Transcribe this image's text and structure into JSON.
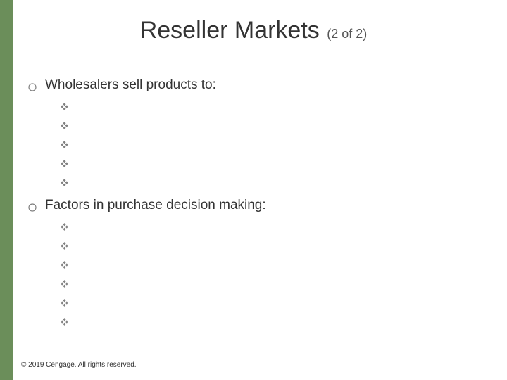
{
  "accent_bar_color": "#6b8e5a",
  "title": {
    "main": "Reseller Markets",
    "sub": "(2 of 2)",
    "main_fontsize": 34,
    "sub_fontsize": 18,
    "main_color": "#333333",
    "sub_color": "#555555"
  },
  "bullets": {
    "level1_color": "#808080",
    "level2_color": "#808080",
    "items": [
      {
        "text": "Wholesalers sell products to:",
        "sub_count": 5
      },
      {
        "text": "Factors in purchase decision making:",
        "sub_count": 6
      }
    ]
  },
  "footer": "© 2019 Cengage. All rights reserved.",
  "background_color": "#ffffff"
}
